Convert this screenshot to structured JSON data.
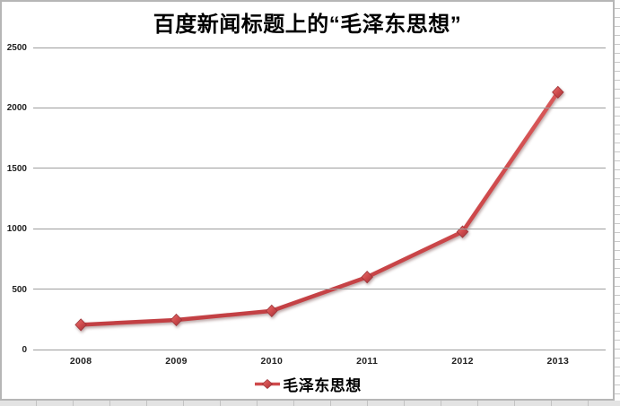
{
  "chart_data": {
    "type": "line",
    "title": "百度新闻标题上的“毛泽东思想”",
    "categories": [
      "2008",
      "2009",
      "2010",
      "2011",
      "2012",
      "2013"
    ],
    "series": [
      {
        "name": "毛泽东思想",
        "values": [
          205,
          245,
          320,
          600,
          975,
          2130
        ],
        "color": "#CF4A4C",
        "marker": "diamond"
      }
    ],
    "xlabel": "",
    "ylabel": "",
    "ylim": [
      0,
      2500
    ],
    "yticks": [
      0,
      500,
      1000,
      1500,
      2000,
      2500
    ],
    "grid": "horizontal",
    "legend_position": "bottom"
  },
  "legend": {
    "label": "毛泽东思想"
  },
  "colors": {
    "line": "#CF4A4C",
    "marker_edge": "#9E3338",
    "gridline": "#9D9D9D",
    "axis_text": "#212121",
    "chart_border": "#B6B6B6",
    "sheet_strip_bg": "#E3E3E3",
    "sheet_cell_line": "#C2C2C2"
  }
}
